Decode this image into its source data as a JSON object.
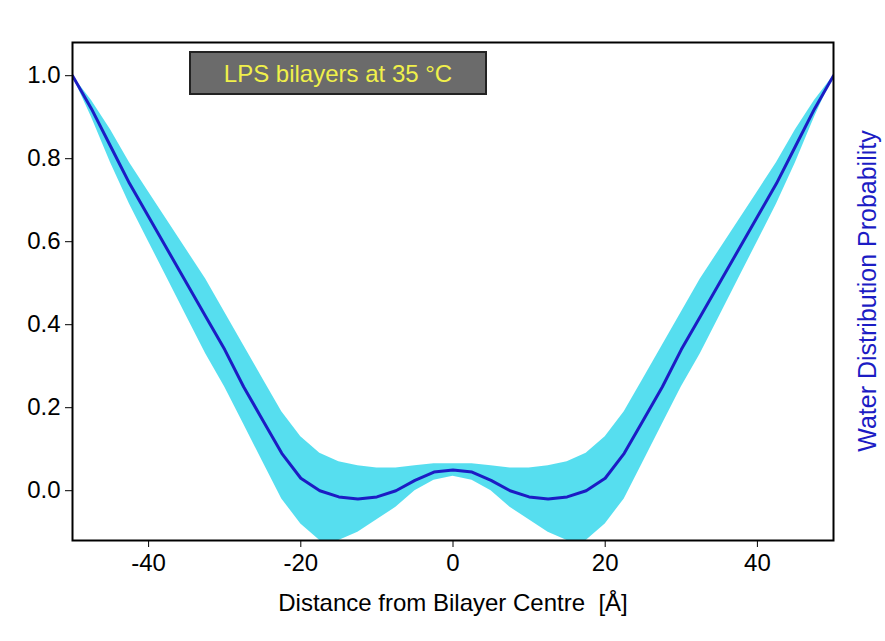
{
  "chart_data": {
    "type": "line",
    "title": "LPS bilayers at 35 °C",
    "xlabel": "Distance from Bilayer Centre  [Å]",
    "ylabel": "Water Distribution Probability",
    "x": [
      -50,
      -47.5,
      -45,
      -42.5,
      -40,
      -37.5,
      -35,
      -32.5,
      -30,
      -27.5,
      -25,
      -22.5,
      -20,
      -17.5,
      -15,
      -12.5,
      -10,
      -7.5,
      -5,
      -2.5,
      0,
      2.5,
      5,
      7.5,
      10,
      12.5,
      15,
      17.5,
      20,
      22.5,
      25,
      27.5,
      30,
      32.5,
      35,
      37.5,
      40,
      42.5,
      45,
      47.5,
      50
    ],
    "series": [
      {
        "color": "#1c1cc4",
        "values": [
          1.0,
          0.92,
          0.83,
          0.74,
          0.66,
          0.58,
          0.5,
          0.42,
          0.34,
          0.25,
          0.17,
          0.09,
          0.03,
          0.0,
          -0.015,
          -0.02,
          -0.015,
          0.0,
          0.025,
          0.045,
          0.05,
          0.045,
          0.025,
          0.0,
          -0.015,
          -0.02,
          -0.015,
          0.0,
          0.03,
          0.09,
          0.17,
          0.25,
          0.34,
          0.42,
          0.5,
          0.58,
          0.66,
          0.74,
          0.83,
          0.92,
          1.0
        ],
        "lower": [
          1.0,
          0.9,
          0.79,
          0.69,
          0.6,
          0.51,
          0.42,
          0.33,
          0.25,
          0.16,
          0.07,
          -0.02,
          -0.08,
          -0.12,
          -0.12,
          -0.1,
          -0.07,
          -0.04,
          0.0,
          0.025,
          0.035,
          0.025,
          0.0,
          -0.04,
          -0.07,
          -0.1,
          -0.12,
          -0.12,
          -0.08,
          -0.02,
          0.07,
          0.16,
          0.25,
          0.33,
          0.42,
          0.51,
          0.6,
          0.69,
          0.79,
          0.9,
          1.0
        ],
        "upper": [
          1.0,
          0.94,
          0.87,
          0.79,
          0.72,
          0.65,
          0.58,
          0.51,
          0.43,
          0.35,
          0.27,
          0.19,
          0.13,
          0.09,
          0.07,
          0.06,
          0.055,
          0.055,
          0.06,
          0.065,
          0.065,
          0.065,
          0.06,
          0.055,
          0.055,
          0.06,
          0.07,
          0.09,
          0.13,
          0.19,
          0.27,
          0.35,
          0.43,
          0.51,
          0.58,
          0.65,
          0.72,
          0.79,
          0.87,
          0.94,
          1.0
        ]
      }
    ],
    "xlim": [
      -50,
      50
    ],
    "xticks": [
      -40,
      -20,
      0,
      20,
      40
    ],
    "ylim": [
      -0.12,
      1.08
    ],
    "yticks": [
      {
        "value": 0,
        "label": "0.0"
      },
      0.2,
      0.4,
      0.6,
      0.8,
      {
        "value": 1,
        "label": "1.0"
      }
    ],
    "grid": false
  }
}
